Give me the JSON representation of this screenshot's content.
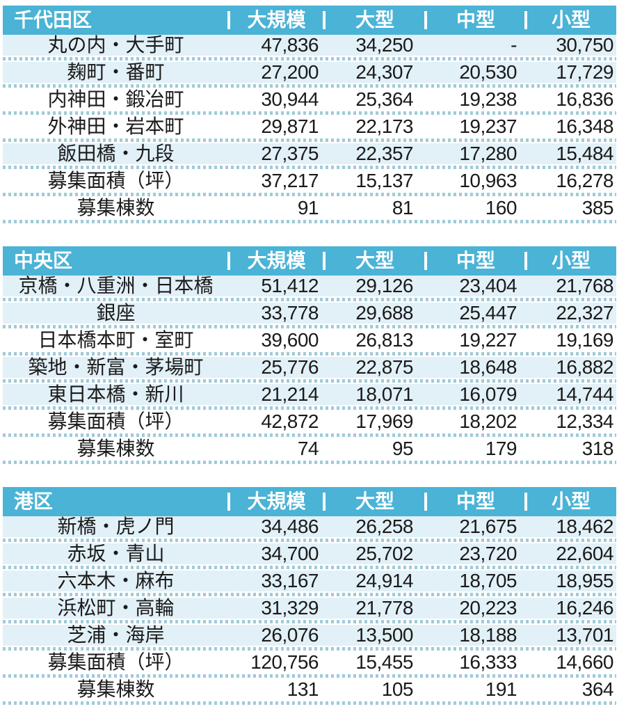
{
  "colors": {
    "header_bg": "#4AB3D6",
    "header_text": "#FFFFFF",
    "row_shaded": "#E2F0F7",
    "row_plain": "#FFFFFF",
    "separator_dots": "#A0CBDA",
    "body_text": "#1A1A1A"
  },
  "columns": [
    "大規模",
    "大型",
    "中型",
    "小型"
  ],
  "tables": [
    {
      "title": "千代田区",
      "rows": [
        {
          "label": "丸の内・大手町",
          "values": [
            "47,836",
            "34,250",
            "-",
            "30,750"
          ],
          "shade": "b"
        },
        {
          "label": "麹町・番町",
          "values": [
            "27,200",
            "24,307",
            "20,530",
            "17,729"
          ],
          "shade": "b"
        },
        {
          "label": "内神田・鍛冶町",
          "values": [
            "30,944",
            "25,364",
            "19,238",
            "16,836"
          ],
          "shade": "w"
        },
        {
          "label": "外神田・岩本町",
          "values": [
            "29,871",
            "22,173",
            "19,237",
            "16,348"
          ],
          "shade": "w"
        },
        {
          "label": "飯田橋・九段",
          "values": [
            "27,375",
            "22,357",
            "17,280",
            "15,484"
          ],
          "shade": "b"
        },
        {
          "label": "募集面積（坪）",
          "values": [
            "37,217",
            "15,137",
            "10,963",
            "16,278"
          ],
          "shade": "w"
        },
        {
          "label": "募集棟数",
          "values": [
            "91",
            "81",
            "160",
            "385"
          ],
          "shade": "w"
        }
      ]
    },
    {
      "title": "中央区",
      "rows": [
        {
          "label": "京橋・八重洲・日本橋",
          "values": [
            "51,412",
            "29,126",
            "23,404",
            "21,768"
          ],
          "shade": "b"
        },
        {
          "label": "銀座",
          "values": [
            "33,778",
            "29,688",
            "25,447",
            "22,327"
          ],
          "shade": "b"
        },
        {
          "label": "日本橋本町・室町",
          "values": [
            "39,600",
            "26,813",
            "19,227",
            "19,169"
          ],
          "shade": "w"
        },
        {
          "label": "築地・新富・茅場町",
          "values": [
            "25,776",
            "22,875",
            "18,648",
            "16,882"
          ],
          "shade": "b"
        },
        {
          "label": "東日本橋・新川",
          "values": [
            "21,214",
            "18,071",
            "16,079",
            "14,744"
          ],
          "shade": "b"
        },
        {
          "label": "募集面積（坪）",
          "values": [
            "42,872",
            "17,969",
            "18,202",
            "12,334"
          ],
          "shade": "w"
        },
        {
          "label": "募集棟数",
          "values": [
            "74",
            "95",
            "179",
            "318"
          ],
          "shade": "w"
        }
      ]
    },
    {
      "title": "港区",
      "rows": [
        {
          "label": "新橋・虎ノ門",
          "values": [
            "34,486",
            "26,258",
            "21,675",
            "18,462"
          ],
          "shade": "b"
        },
        {
          "label": "赤坂・青山",
          "values": [
            "34,700",
            "25,702",
            "23,720",
            "22,604"
          ],
          "shade": "b"
        },
        {
          "label": "六本木・麻布",
          "values": [
            "33,167",
            "24,914",
            "18,705",
            "18,955"
          ],
          "shade": "b"
        },
        {
          "label": "浜松町・高輪",
          "values": [
            "31,329",
            "21,778",
            "20,223",
            "16,246"
          ],
          "shade": "b"
        },
        {
          "label": "芝浦・海岸",
          "values": [
            "26,076",
            "13,500",
            "18,188",
            "13,701"
          ],
          "shade": "b"
        },
        {
          "label": "募集面積（坪）",
          "values": [
            "120,756",
            "15,455",
            "16,333",
            "14,660"
          ],
          "shade": "w"
        },
        {
          "label": "募集棟数",
          "values": [
            "131",
            "105",
            "191",
            "364"
          ],
          "shade": "w"
        }
      ]
    }
  ]
}
